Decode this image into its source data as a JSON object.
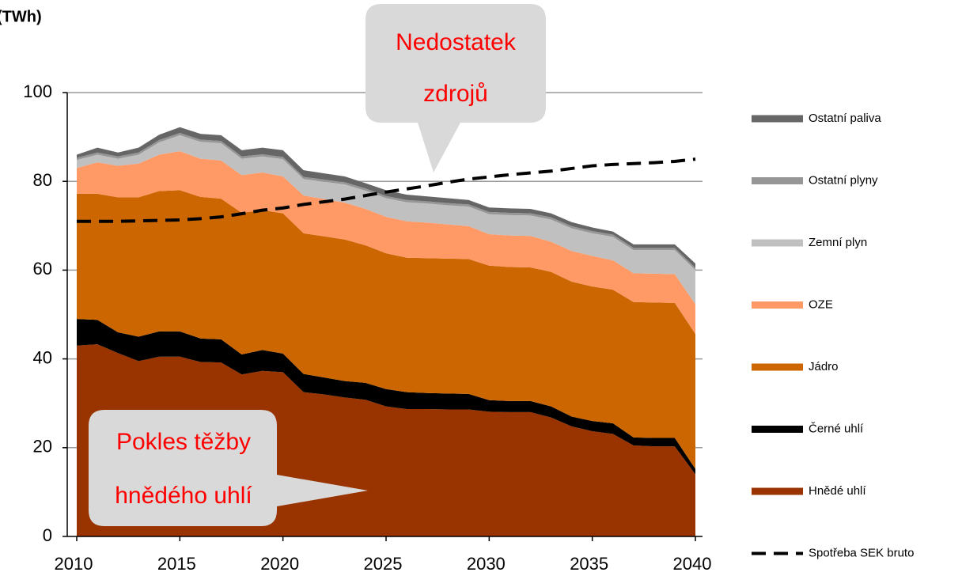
{
  "chart_data": {
    "type": "area",
    "stacked": true,
    "y_label": "(TWh)",
    "x": [
      2010,
      2011,
      2012,
      2013,
      2014,
      2015,
      2016,
      2017,
      2018,
      2019,
      2020,
      2021,
      2022,
      2023,
      2024,
      2025,
      2026,
      2027,
      2028,
      2029,
      2030,
      2031,
      2032,
      2033,
      2034,
      2035,
      2036,
      2037,
      2038,
      2039,
      2040
    ],
    "xlim": [
      2010,
      2040
    ],
    "xticks": [
      2010,
      2015,
      2020,
      2025,
      2030,
      2035,
      2040
    ],
    "ylim": [
      0,
      100
    ],
    "yticks": [
      0,
      20,
      40,
      60,
      80,
      100
    ],
    "grid": true,
    "legend": "right",
    "series": [
      {
        "name": "Hnědé uhlí",
        "color": "#993300",
        "values": [
          43,
          43.3,
          41.3,
          39.5,
          40.5,
          40.5,
          39.3,
          39.2,
          36.5,
          37.3,
          37,
          32.5,
          32,
          31.3,
          30.8,
          29.3,
          28.7,
          28.7,
          28.6,
          28.6,
          28.1,
          28,
          28,
          26.8,
          24.8,
          23.7,
          23.1,
          20.5,
          20.3,
          20.3,
          14
        ]
      },
      {
        "name": "Černé uhlí",
        "color": "#000000",
        "values": [
          6,
          5.5,
          4.7,
          5.5,
          5.7,
          5.7,
          5.3,
          5.2,
          4.5,
          4.7,
          4.2,
          4.1,
          3.8,
          3.7,
          3.8,
          3.9,
          3.8,
          3.6,
          3.6,
          3.5,
          2.6,
          2.5,
          2.5,
          2.5,
          2.2,
          2.3,
          2.4,
          1.8,
          1.9,
          1.9,
          1.2
        ]
      },
      {
        "name": "Jádro",
        "color": "#cc6600",
        "values": [
          28.2,
          28.4,
          30.4,
          31.4,
          31.6,
          31.8,
          31.9,
          31.7,
          31.9,
          31.5,
          31.6,
          31.7,
          31.8,
          31.9,
          31,
          30.6,
          30.3,
          30.4,
          30.4,
          30.4,
          30.3,
          30.2,
          30.1,
          30.3,
          30.4,
          30.3,
          30.1,
          30.5,
          30.5,
          30.4,
          30.4
        ]
      },
      {
        "name": "OZE",
        "color": "#ff9966",
        "values": [
          5.8,
          7.1,
          7.1,
          7.6,
          8.2,
          8.8,
          8.6,
          8.6,
          8.5,
          8.5,
          8.3,
          8.5,
          8.4,
          8.3,
          8.2,
          8.2,
          8.2,
          8,
          7.7,
          7.4,
          7.1,
          7.1,
          7.1,
          6.8,
          6.9,
          6.9,
          6.6,
          6.5,
          6.5,
          6.5,
          6.7
        ]
      },
      {
        "name": "Zemní plyn",
        "color": "#c0c0c0",
        "values": [
          1.8,
          1.7,
          1.6,
          2,
          2.8,
          3.6,
          3.8,
          3.9,
          3.7,
          3.6,
          3.9,
          3.7,
          3.9,
          4.1,
          4.1,
          4.2,
          4.3,
          4.3,
          4.3,
          4.4,
          4.5,
          4.6,
          4.6,
          5,
          5.1,
          5.1,
          5.3,
          5.2,
          5.3,
          5.4,
          7.7
        ]
      },
      {
        "name": "Ostatní plyny",
        "color": "#969696",
        "values": [
          0.5,
          0.5,
          0.5,
          0.5,
          0.5,
          0.5,
          0.5,
          0.5,
          0.5,
          0.5,
          0.5,
          0.5,
          0.5,
          0.5,
          0.5,
          0.5,
          0.5,
          0.5,
          0.5,
          0.5,
          0.5,
          0.5,
          0.5,
          0.5,
          0.5,
          0.5,
          0.5,
          0.5,
          0.5,
          0.5,
          0.5
        ]
      },
      {
        "name": "Ostatní paliva",
        "color": "#666666",
        "values": [
          0.7,
          1.1,
          0.9,
          1.1,
          1.2,
          1.3,
          1.3,
          1.3,
          1.4,
          1.5,
          1.5,
          1.5,
          1.4,
          1.3,
          1.2,
          1.3,
          1.2,
          1.1,
          1.1,
          1,
          1,
          1,
          1,
          0.9,
          0.9,
          0.8,
          0.7,
          0.8,
          0.8,
          0.8,
          1
        ]
      },
      {
        "name": "Spotřeba SEK bruto",
        "color": "#000000",
        "kind": "line",
        "dash": "dashed",
        "values": [
          71,
          71,
          71,
          71.1,
          71.2,
          71.3,
          71.6,
          72,
          72.7,
          73.5,
          74,
          74.8,
          75.4,
          76,
          76.8,
          77.6,
          78.3,
          79,
          79.8,
          80.5,
          81,
          81.5,
          81.9,
          82.3,
          82.9,
          83.5,
          83.8,
          84,
          84.2,
          84.5,
          85
        ]
      }
    ],
    "annotations": [
      {
        "lines": [
          "Nedostatek",
          "zdrojů"
        ]
      },
      {
        "lines": [
          "Pokles těžby",
          "hnědého uhlí"
        ]
      }
    ]
  }
}
